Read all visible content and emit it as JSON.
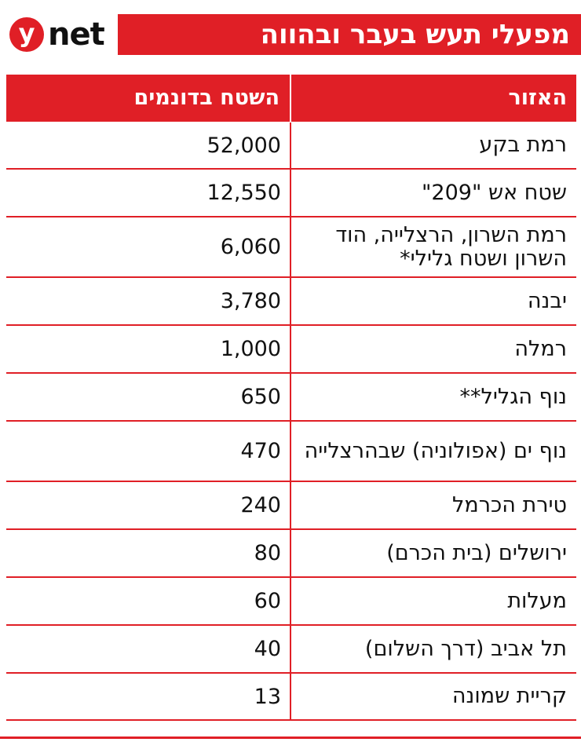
{
  "logo": {
    "mark": "y",
    "text": "net"
  },
  "title": "מפעלי תעש בעבר ובהווה",
  "colors": {
    "accent": "#e01f26",
    "text": "#111111",
    "background": "#ffffff"
  },
  "chart_data": {
    "type": "table",
    "title": "מפעלי תעש בעבר ובהווה",
    "columns": [
      "האזור",
      "השטח בדונמים"
    ],
    "rows": [
      {
        "area": "רמת בקע",
        "size": "52,000",
        "value": 52000
      },
      {
        "area": "שטח אש \"209\"",
        "size": "12,550",
        "value": 12550
      },
      {
        "area": "רמת השרון, הרצלייה, הוד השרון ושטח גלילי*",
        "size": "6,060",
        "value": 6060
      },
      {
        "area": "יבנה",
        "size": "3,780",
        "value": 3780
      },
      {
        "area": "רמלה",
        "size": "1,000",
        "value": 1000
      },
      {
        "area": "נוף הגליל**",
        "size": "650",
        "value": 650
      },
      {
        "area": "נוף ים (אפולוניה) שבהרצלייה",
        "size": "470",
        "value": 470
      },
      {
        "area": "טירת הכרמל",
        "size": "240",
        "value": 240
      },
      {
        "area": "ירושלים (בית הכרם)",
        "size": "80",
        "value": 80
      },
      {
        "area": "מעלות",
        "size": "60",
        "value": 60
      },
      {
        "area": "תל אביב (דרך השלום)",
        "size": "40",
        "value": 40
      },
      {
        "area": "קריית שמונה",
        "size": "13",
        "value": 13
      }
    ]
  }
}
